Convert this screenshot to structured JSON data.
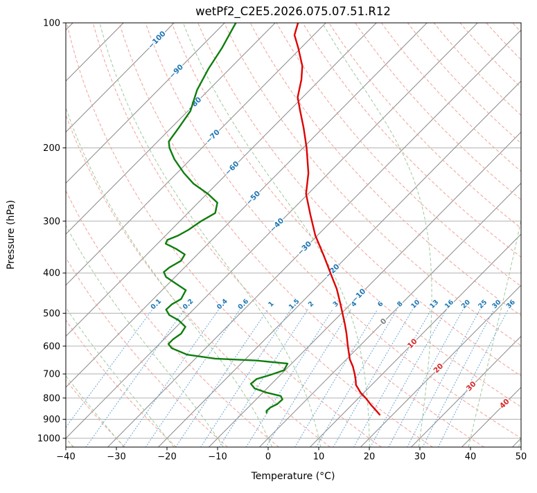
{
  "chart_data": {
    "type": "line",
    "variant": "skew-t-log-p-sounding",
    "title": "wetPf2_C2E5.2026.075.07.51.R12",
    "xlabel": "Temperature (°C)",
    "ylabel": "Pressure (hPa)",
    "xlim": [
      -40,
      50
    ],
    "plim": [
      100,
      1050
    ],
    "x_ticks": [
      -40,
      -30,
      -20,
      -10,
      0,
      10,
      20,
      30,
      40,
      50
    ],
    "pressure_ticks": [
      100,
      200,
      300,
      400,
      500,
      600,
      700,
      800,
      900,
      1000
    ],
    "grid": true,
    "legend": "none",
    "skew_deg_per_decade": 81.4,
    "isotherms": {
      "start": -160,
      "end": 50,
      "step": 10
    },
    "isotherm_labels": [
      [
        -100,
        110
      ],
      [
        -90,
        131
      ],
      [
        -80,
        157
      ],
      [
        -70,
        188
      ],
      [
        -60,
        224
      ],
      [
        -50,
        264
      ],
      [
        -40,
        307
      ],
      [
        -30,
        349
      ],
      [
        -20,
        396
      ],
      [
        -10,
        454
      ],
      [
        0,
        524
      ],
      [
        10,
        592
      ],
      [
        20,
        679
      ],
      [
        30,
        750
      ],
      [
        40,
        826
      ]
    ],
    "dry_adiabats": {
      "start": -40,
      "end": 200,
      "step": 10
    },
    "moist_adiabats": {
      "start": -40,
      "end": 50,
      "step": 10
    },
    "mixing_ratios": [
      0.1,
      0.2,
      0.4,
      0.6,
      1,
      1.5,
      2,
      3,
      4,
      6,
      8,
      10,
      13,
      16,
      20,
      25,
      30,
      36
    ],
    "mixing_label_pressure": 476,
    "mixing_line_top_pressure": 483,
    "series": [
      {
        "name": "temperature",
        "color": "#e00000",
        "points": [
          [
            100,
            -75.5
          ],
          [
            107,
            -73.8
          ],
          [
            115,
            -70.5
          ],
          [
            127,
            -66.2
          ],
          [
            137,
            -63.7
          ],
          [
            151,
            -61.0
          ],
          [
            163,
            -57.8
          ],
          [
            179,
            -53.8
          ],
          [
            200,
            -49.3
          ],
          [
            230,
            -44.0
          ],
          [
            258,
            -40.4
          ],
          [
            290,
            -35.4
          ],
          [
            325,
            -30.4
          ],
          [
            364,
            -24.7
          ],
          [
            408,
            -19.1
          ],
          [
            437,
            -15.7
          ],
          [
            471,
            -12.4
          ],
          [
            500,
            -9.8
          ],
          [
            530,
            -7.3
          ],
          [
            560,
            -5.0
          ],
          [
            600,
            -2.3
          ],
          [
            646,
            0.7
          ],
          [
            672,
            2.7
          ],
          [
            700,
            4.5
          ],
          [
            726,
            6.0
          ],
          [
            744,
            6.9
          ],
          [
            776,
            9.3
          ],
          [
            800,
            11.4
          ],
          [
            831,
            13.8
          ],
          [
            860,
            16.1
          ],
          [
            877,
            17.4
          ]
        ]
      },
      {
        "name": "dewpoint",
        "color": "#0e7d0e",
        "points": [
          [
            100,
            -87.8
          ],
          [
            115,
            -85.6
          ],
          [
            129,
            -84.2
          ],
          [
            145,
            -82.3
          ],
          [
            163,
            -79.5
          ],
          [
            179,
            -78.5
          ],
          [
            193,
            -77.8
          ],
          [
            200,
            -76.4
          ],
          [
            213,
            -73.2
          ],
          [
            230,
            -68.6
          ],
          [
            244,
            -64.6
          ],
          [
            258,
            -59.8
          ],
          [
            271,
            -56.2
          ],
          [
            287,
            -54.6
          ],
          [
            300,
            -55.8
          ],
          [
            315,
            -56.6
          ],
          [
            325,
            -57.5
          ],
          [
            333,
            -58.8
          ],
          [
            340,
            -58.4
          ],
          [
            350,
            -55.3
          ],
          [
            361,
            -52.5
          ],
          [
            374,
            -52.0
          ],
          [
            388,
            -53.0
          ],
          [
            398,
            -53.2
          ],
          [
            409,
            -51.8
          ],
          [
            425,
            -48.4
          ],
          [
            440,
            -45.3
          ],
          [
            462,
            -44.5
          ],
          [
            476,
            -45.3
          ],
          [
            490,
            -45.4
          ],
          [
            505,
            -43.7
          ],
          [
            520,
            -40.8
          ],
          [
            539,
            -38.2
          ],
          [
            560,
            -37.7
          ],
          [
            577,
            -38.2
          ],
          [
            593,
            -38.2
          ],
          [
            607,
            -36.7
          ],
          [
            629,
            -32.4
          ],
          [
            643,
            -26.1
          ],
          [
            650,
            -17.5
          ],
          [
            661,
            -10.8
          ],
          [
            686,
            -10.2
          ],
          [
            704,
            -12.0
          ],
          [
            720,
            -13.9
          ],
          [
            739,
            -14.1
          ],
          [
            759,
            -12.4
          ],
          [
            776,
            -9.3
          ],
          [
            791,
            -5.8
          ],
          [
            806,
            -4.8
          ],
          [
            827,
            -4.9
          ],
          [
            843,
            -5.6
          ],
          [
            859,
            -5.7
          ],
          [
            868,
            -5.3
          ]
        ]
      }
    ],
    "colors": {
      "temperature_line": "#e00000",
      "dewpoint_line": "#0e7d0e",
      "isobar": "#b0b0b0",
      "isotherm": "#8c8c8c",
      "dry_adiabat": "#f0a098",
      "moist_adiabat": "#9cc99c",
      "mixing_line": "#70a8d8",
      "mixing_label": "#1f77b4",
      "label_negative": "#1f77b4",
      "label_zero": "#808080",
      "label_positive": "#d62728",
      "spine": "#000000"
    }
  }
}
